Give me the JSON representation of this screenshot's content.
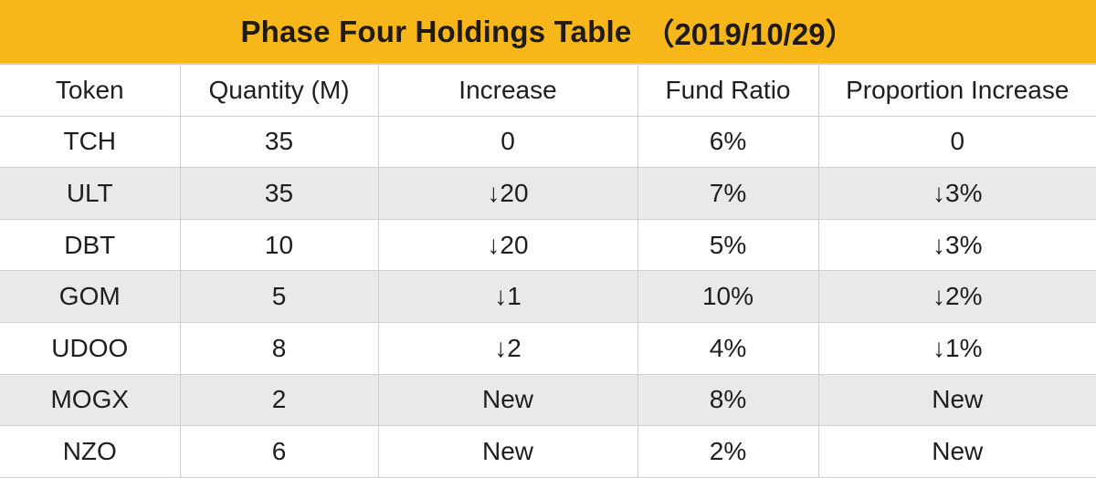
{
  "table": {
    "title": "Phase Four Holdings Table",
    "date": "（2019/10/29）",
    "headers": [
      "Token",
      "Quantity (M)",
      "Increase",
      "Fund Ratio",
      "Proportion Increase"
    ],
    "rows": [
      [
        "TCH",
        "35",
        "0",
        "6%",
        "0"
      ],
      [
        "ULT",
        "35",
        "↓20",
        "7%",
        "↓3%"
      ],
      [
        "DBT",
        "10",
        "↓20",
        "5%",
        "↓3%"
      ],
      [
        "GOM",
        "5",
        "↓1",
        "10%",
        "↓2%"
      ],
      [
        "UDOO",
        "8",
        "↓2",
        "4%",
        "↓1%"
      ],
      [
        "MOGX",
        "2",
        "New",
        "8%",
        "New"
      ],
      [
        "NZO",
        "6",
        "New",
        "2%",
        "New"
      ]
    ]
  },
  "colors": {
    "title_background": "#f7b71b",
    "alt_row_background": "#e9e9e9",
    "grid_line": "#cfcfcf"
  }
}
